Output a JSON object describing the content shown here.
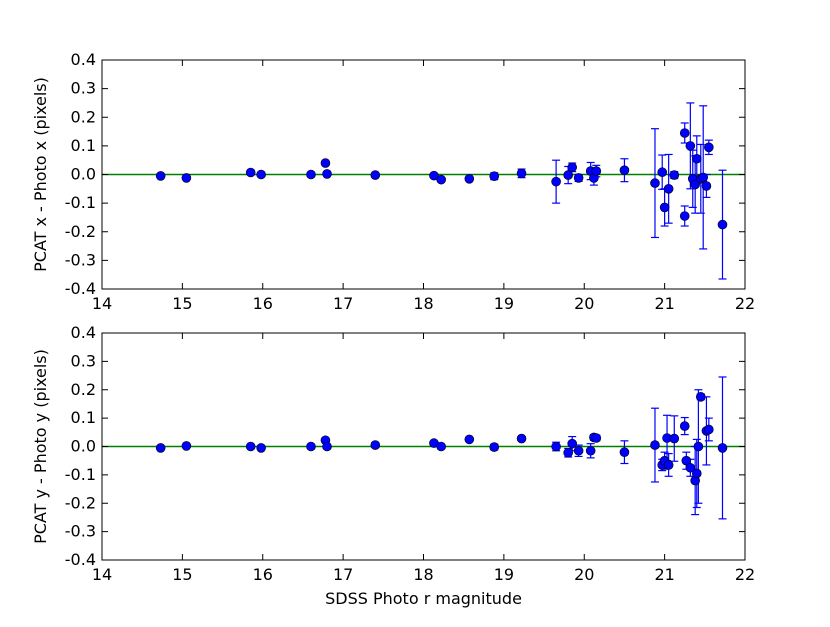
{
  "chart_data": [
    {
      "type": "scatter",
      "error_bars": true,
      "xlabel": "",
      "ylabel": "PCAT x - Photo x (pixels)",
      "xlim": [
        14,
        22
      ],
      "ylim": [
        -0.4,
        0.4
      ],
      "x_ticks": [
        "14",
        "15",
        "16",
        "17",
        "18",
        "19",
        "20",
        "21",
        "22"
      ],
      "y_ticks": [
        "0.4",
        "0.3",
        "0.2",
        "0.1",
        "0.0",
        "-0.1",
        "-0.2",
        "-0.3",
        "-0.4"
      ],
      "reference_line": {
        "y": 0.0,
        "color": "#008000"
      },
      "marker_color": "#0000ff",
      "points": [
        {
          "x": 14.73,
          "y": -0.005,
          "err": 0.004
        },
        {
          "x": 15.05,
          "y": -0.012,
          "err": 0.004
        },
        {
          "x": 15.85,
          "y": 0.007,
          "err": 0.004
        },
        {
          "x": 15.98,
          "y": 0.0,
          "err": 0.004
        },
        {
          "x": 16.6,
          "y": 0.0,
          "err": 0.004
        },
        {
          "x": 16.78,
          "y": 0.04,
          "err": 0.004
        },
        {
          "x": 16.8,
          "y": 0.002,
          "err": 0.004
        },
        {
          "x": 17.4,
          "y": -0.002,
          "err": 0.004
        },
        {
          "x": 18.13,
          "y": -0.004,
          "err": 0.006
        },
        {
          "x": 18.22,
          "y": -0.018,
          "err": 0.006
        },
        {
          "x": 18.57,
          "y": -0.015,
          "err": 0.006
        },
        {
          "x": 18.88,
          "y": -0.006,
          "err": 0.012
        },
        {
          "x": 19.22,
          "y": 0.004,
          "err": 0.015
        },
        {
          "x": 19.65,
          "y": -0.025,
          "err": 0.075
        },
        {
          "x": 19.8,
          "y": -0.002,
          "err": 0.03
        },
        {
          "x": 19.85,
          "y": 0.025,
          "err": 0.015
        },
        {
          "x": 19.93,
          "y": -0.012,
          "err": 0.012
        },
        {
          "x": 20.08,
          "y": 0.012,
          "err": 0.03
        },
        {
          "x": 20.12,
          "y": -0.012,
          "err": 0.025
        },
        {
          "x": 20.15,
          "y": 0.012,
          "err": 0.02
        },
        {
          "x": 20.5,
          "y": 0.015,
          "err": 0.04
        },
        {
          "x": 20.88,
          "y": -0.03,
          "err": 0.19
        },
        {
          "x": 20.97,
          "y": 0.008,
          "err": 0.06
        },
        {
          "x": 21.0,
          "y": -0.115,
          "err": 0.065
        },
        {
          "x": 21.05,
          "y": -0.05,
          "err": 0.12
        },
        {
          "x": 21.12,
          "y": -0.002,
          "err": 0.012
        },
        {
          "x": 21.25,
          "y": -0.145,
          "err": 0.035
        },
        {
          "x": 21.25,
          "y": 0.145,
          "err": 0.035
        },
        {
          "x": 21.32,
          "y": 0.1,
          "err": 0.15
        },
        {
          "x": 21.35,
          "y": -0.015,
          "err": 0.1
        },
        {
          "x": 21.38,
          "y": -0.035,
          "err": 0.1
        },
        {
          "x": 21.4,
          "y": 0.055,
          "err": 0.08
        },
        {
          "x": 21.45,
          "y": -0.015,
          "err": 0.12
        },
        {
          "x": 21.48,
          "y": -0.01,
          "err": 0.25
        },
        {
          "x": 21.52,
          "y": -0.04,
          "err": 0.04
        },
        {
          "x": 21.55,
          "y": 0.095,
          "err": 0.025
        },
        {
          "x": 21.72,
          "y": -0.175,
          "err": 0.19
        }
      ]
    },
    {
      "type": "scatter",
      "error_bars": true,
      "xlabel": "SDSS Photo r magnitude",
      "ylabel": "PCAT y - Photo y (pixels)",
      "xlim": [
        14,
        22
      ],
      "ylim": [
        -0.4,
        0.4
      ],
      "x_ticks": [
        "14",
        "15",
        "16",
        "17",
        "18",
        "19",
        "20",
        "21",
        "22"
      ],
      "y_ticks": [
        "0.4",
        "0.3",
        "0.2",
        "0.1",
        "0.0",
        "-0.1",
        "-0.2",
        "-0.3",
        "-0.4"
      ],
      "reference_line": {
        "y": 0.0,
        "color": "#008000"
      },
      "marker_color": "#0000ff",
      "points": [
        {
          "x": 14.73,
          "y": -0.005,
          "err": 0.004
        },
        {
          "x": 15.05,
          "y": 0.002,
          "err": 0.004
        },
        {
          "x": 15.85,
          "y": 0.0,
          "err": 0.004
        },
        {
          "x": 15.98,
          "y": -0.005,
          "err": 0.004
        },
        {
          "x": 16.6,
          "y": 0.0,
          "err": 0.004
        },
        {
          "x": 16.78,
          "y": 0.022,
          "err": 0.004
        },
        {
          "x": 16.8,
          "y": 0.0,
          "err": 0.004
        },
        {
          "x": 17.4,
          "y": 0.005,
          "err": 0.008
        },
        {
          "x": 18.13,
          "y": 0.012,
          "err": 0.005
        },
        {
          "x": 18.22,
          "y": 0.0,
          "err": 0.005
        },
        {
          "x": 18.57,
          "y": 0.025,
          "err": 0.006
        },
        {
          "x": 18.88,
          "y": -0.002,
          "err": 0.01
        },
        {
          "x": 19.22,
          "y": 0.028,
          "err": 0.005
        },
        {
          "x": 19.65,
          "y": 0.0,
          "err": 0.015
        },
        {
          "x": 19.8,
          "y": -0.022,
          "err": 0.015
        },
        {
          "x": 19.85,
          "y": 0.01,
          "err": 0.025
        },
        {
          "x": 19.93,
          "y": -0.015,
          "err": 0.02
        },
        {
          "x": 20.08,
          "y": -0.015,
          "err": 0.025
        },
        {
          "x": 20.12,
          "y": 0.032,
          "err": 0.01
        },
        {
          "x": 20.15,
          "y": 0.03,
          "err": 0.01
        },
        {
          "x": 20.5,
          "y": -0.02,
          "err": 0.04
        },
        {
          "x": 20.88,
          "y": 0.005,
          "err": 0.13
        },
        {
          "x": 20.97,
          "y": -0.065,
          "err": 0.02
        },
        {
          "x": 21.0,
          "y": -0.05,
          "err": 0.03
        },
        {
          "x": 21.03,
          "y": 0.03,
          "err": 0.08
        },
        {
          "x": 21.05,
          "y": -0.065,
          "err": 0.04
        },
        {
          "x": 21.12,
          "y": 0.028,
          "err": 0.08
        },
        {
          "x": 21.25,
          "y": 0.072,
          "err": 0.03
        },
        {
          "x": 21.27,
          "y": -0.05,
          "err": 0.03
        },
        {
          "x": 21.32,
          "y": -0.075,
          "err": 0.03
        },
        {
          "x": 21.38,
          "y": -0.12,
          "err": 0.12
        },
        {
          "x": 21.4,
          "y": -0.095,
          "err": 0.12
        },
        {
          "x": 21.42,
          "y": 0.0,
          "err": 0.2
        },
        {
          "x": 21.45,
          "y": 0.175,
          "err": 0.01
        },
        {
          "x": 21.52,
          "y": 0.055,
          "err": 0.12
        },
        {
          "x": 21.55,
          "y": 0.06,
          "err": 0.04
        },
        {
          "x": 21.72,
          "y": -0.005,
          "err": 0.25
        }
      ]
    }
  ]
}
